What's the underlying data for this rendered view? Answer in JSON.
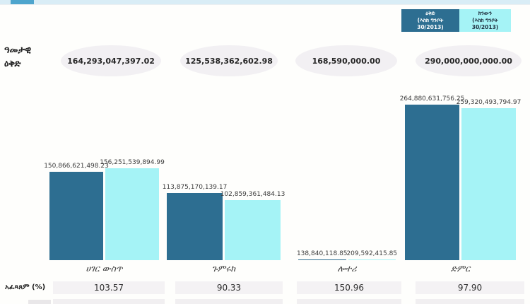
{
  "accent_colors": {
    "plan_bar": "#2d6e91",
    "actual_bar": "#a5f3f6",
    "top_strip": "#d9edf6",
    "top_tab": "#4ea5cd",
    "ellipse_bg": "#f2f0f3",
    "table_cell_bg": "#f4f2f4"
  },
  "legend": {
    "items": [
      {
        "text": "ዕቅድ\n(እስከ ግንቦት\n30/2013)",
        "bg": "#2d6e91",
        "fg": "#ffffff"
      },
      {
        "text": "ክንውን\n(እስከ ግንቦት\n30/2013)",
        "bg": "#a5f3f6",
        "fg": "#1f2d3d"
      }
    ]
  },
  "chart_data": {
    "type": "bar",
    "title": "",
    "categories": [
      "ሀገር ውስጥ",
      "ጉምሩክ",
      "ሎተሪ",
      "ድምር"
    ],
    "series": [
      {
        "name": "ዕቅድ (እስከ ግንቦት 30/2013)",
        "color": "#2d6e91",
        "values": [
          150866621498.23,
          113875170139.17,
          138840118.85,
          264880631756.25
        ]
      },
      {
        "name": "ክንውን (እስከ ግንቦት 30/2013)",
        "color": "#a5f3f6",
        "values": [
          156251539894.99,
          102859361484.13,
          209592415.85,
          259320493794.97
        ]
      }
    ],
    "annual_plan": {
      "label": "ዓመታዊ\nዕቅድ",
      "values": [
        164293047397.02,
        125538362602.98,
        168590000.0,
        290000000000.0
      ]
    },
    "performance_pct": {
      "label": "አፈጻጸም (%)",
      "values": [
        103.57,
        90.33,
        150.96,
        97.9
      ]
    },
    "ylim": [
      0,
      264880631756.25
    ],
    "grid": false,
    "legend_position": "top-right",
    "value_labels": true
  }
}
